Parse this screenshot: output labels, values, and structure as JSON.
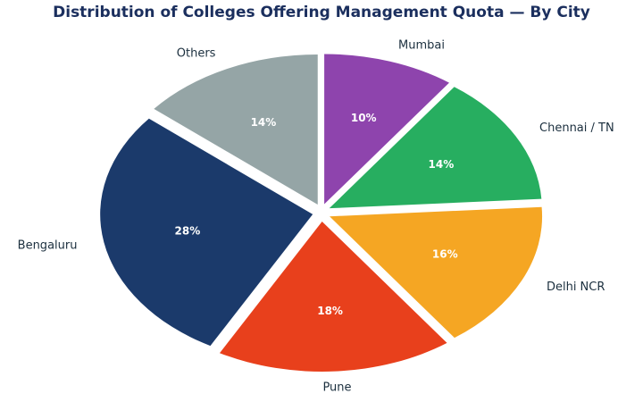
{
  "chart_data": {
    "type": "pie",
    "title": "Distribution of Colleges Offering Management Quota — By City",
    "categories": [
      "Mumbai",
      "Chennai / TN",
      "Delhi NCR",
      "Pune",
      "Bengaluru",
      "Others"
    ],
    "values": [
      10,
      14,
      16,
      18,
      28,
      14
    ],
    "value_labels": [
      "10%",
      "14%",
      "16%",
      "18%",
      "28%",
      "14%"
    ],
    "colors": [
      "#8e44ad",
      "#27ae60",
      "#f5a623",
      "#e8401c",
      "#1b3a6b",
      "#95a5a6"
    ]
  }
}
